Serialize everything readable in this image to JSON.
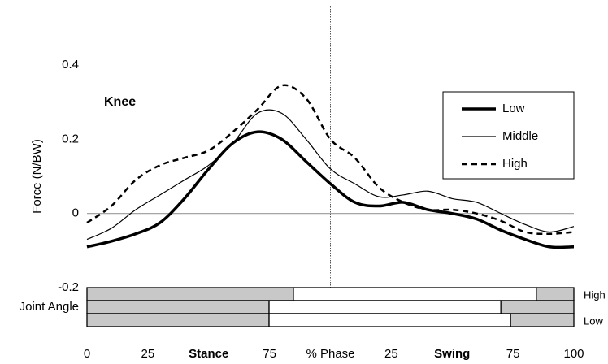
{
  "chart_data": {
    "type": "line",
    "annotation": "Knee",
    "y_label": "Force (N/BW)",
    "x": [
      0,
      5,
      10,
      15,
      20,
      25,
      30,
      35,
      40,
      45,
      50,
      55,
      60,
      65,
      70,
      75,
      80,
      85,
      90,
      95,
      100
    ],
    "series": [
      {
        "name": "Low",
        "color": "#000000",
        "line_style": "solid",
        "line_width": 3.5,
        "values": [
          -0.09,
          -0.075,
          -0.055,
          -0.025,
          0.04,
          0.12,
          0.19,
          0.22,
          0.2,
          0.14,
          0.08,
          0.03,
          0.02,
          0.03,
          0.01,
          0.0,
          -0.015,
          -0.045,
          -0.07,
          -0.09,
          -0.09
        ]
      },
      {
        "name": "Middle",
        "color": "#000000",
        "line_style": "solid",
        "line_width": 1.2,
        "values": [
          -0.07,
          -0.04,
          0.01,
          0.05,
          0.09,
          0.13,
          0.19,
          0.27,
          0.27,
          0.2,
          0.12,
          0.08,
          0.045,
          0.05,
          0.06,
          0.04,
          0.03,
          0.0,
          -0.03,
          -0.05,
          -0.035
        ]
      },
      {
        "name": "High",
        "color": "#000000",
        "line_style": "dashed",
        "line_width": 2.5,
        "values": [
          -0.025,
          0.02,
          0.09,
          0.13,
          0.15,
          0.17,
          0.22,
          0.28,
          0.345,
          0.31,
          0.2,
          0.15,
          0.07,
          0.03,
          0.01,
          0.01,
          0.0,
          -0.02,
          -0.05,
          -0.055,
          -0.05
        ]
      }
    ],
    "xlim": [
      0,
      100
    ],
    "xticks": [
      {
        "value": 0,
        "label": "0"
      },
      {
        "value": 12.5,
        "label": "25"
      },
      {
        "value": 25,
        "label": "Stance"
      },
      {
        "value": 37.5,
        "label": "75"
      },
      {
        "value": 50,
        "label": "% Phase"
      },
      {
        "value": 62.5,
        "label": "25"
      },
      {
        "value": 75,
        "label": "Swing"
      },
      {
        "value": 87.5,
        "label": "75"
      },
      {
        "value": 100,
        "label": "100"
      }
    ],
    "ylim": [
      -0.2,
      0.4
    ],
    "yticks": [
      -0.2,
      0,
      0.2,
      0.4
    ],
    "zero_line": true,
    "phase_divider": 50,
    "legend": "upper right",
    "joint_angle": {
      "label": "Joint Angle",
      "rows": [
        {
          "label": "High",
          "segments": [
            42.4,
            92.3
          ]
        },
        {
          "label": null,
          "segments": [
            37.4,
            85.0
          ]
        },
        {
          "label": "Low",
          "segments": [
            37.4,
            87.0
          ]
        }
      ]
    }
  }
}
